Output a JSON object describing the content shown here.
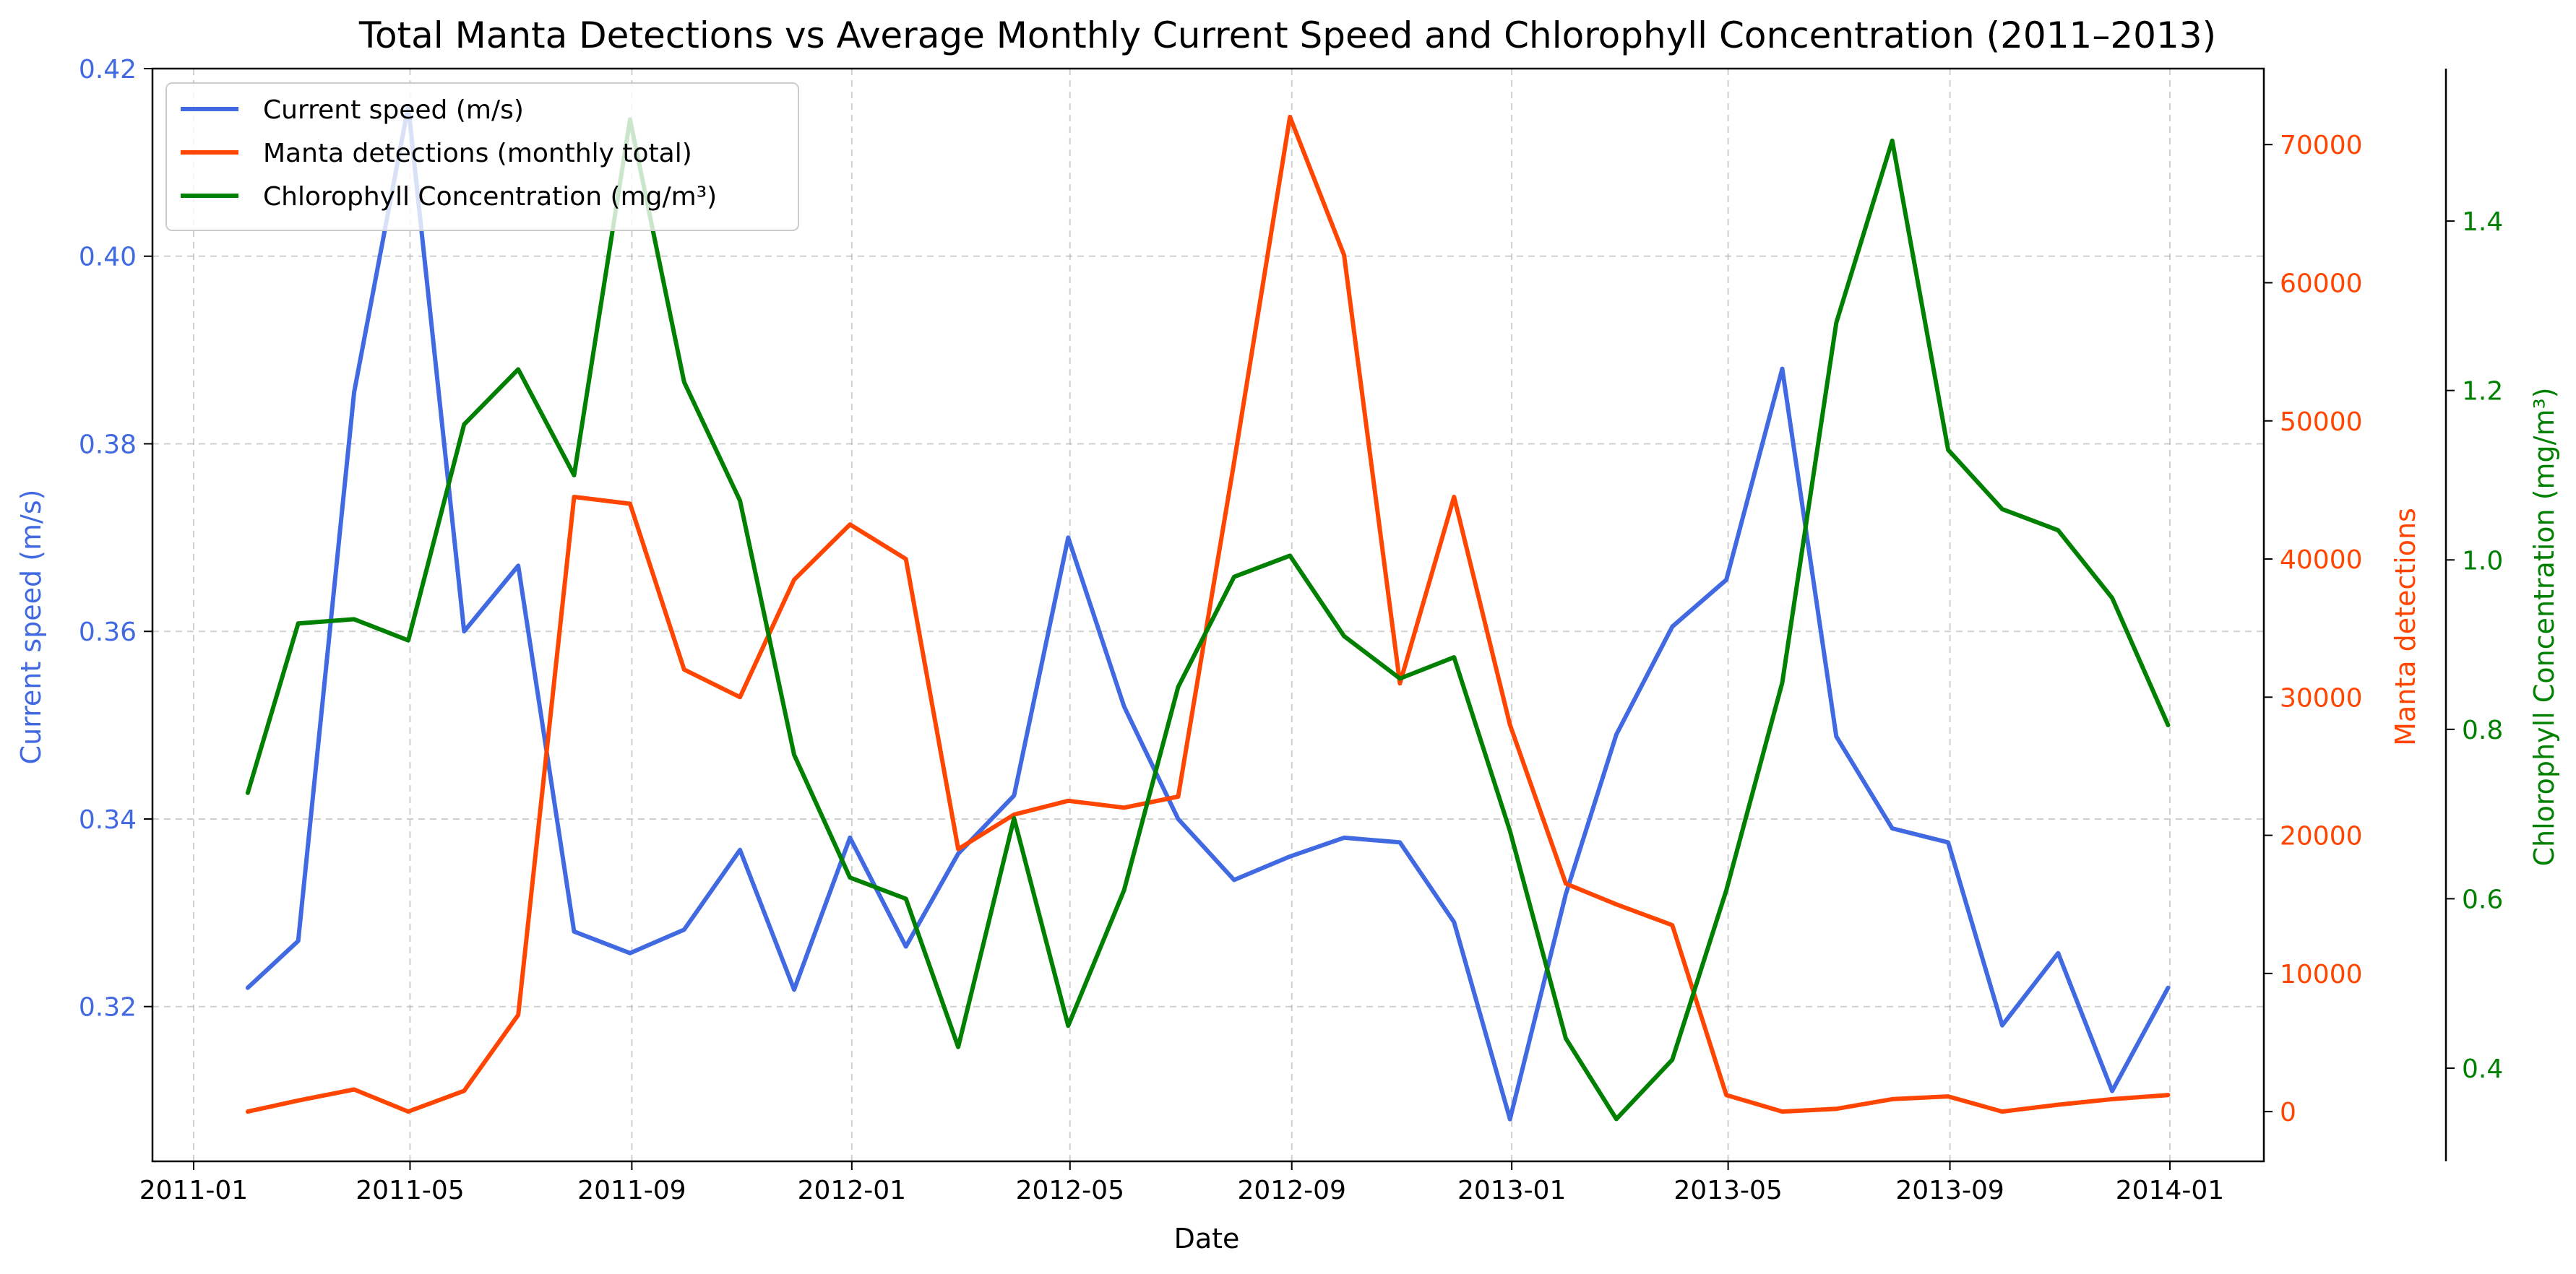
{
  "chart_data": {
    "type": "line",
    "title": "Total Manta Detections vs Average Monthly Current Speed and Chlorophyll Concentration (2011–2013)",
    "xlabel": "Date",
    "x_ticks": [
      "2011-01",
      "2011-05",
      "2011-09",
      "2012-01",
      "2012-05",
      "2012-09",
      "2013-01",
      "2013-05",
      "2013-09",
      "2014-01"
    ],
    "x": [
      "2011-01-31",
      "2011-02-28",
      "2011-03-31",
      "2011-04-30",
      "2011-05-31",
      "2011-06-30",
      "2011-07-31",
      "2011-08-31",
      "2011-09-30",
      "2011-10-31",
      "2011-11-30",
      "2011-12-31",
      "2012-01-31",
      "2012-02-29",
      "2012-03-31",
      "2012-04-30",
      "2012-05-31",
      "2012-06-30",
      "2012-07-31",
      "2012-08-31",
      "2012-09-30",
      "2012-10-31",
      "2012-11-30",
      "2012-12-31",
      "2013-01-31",
      "2013-02-28",
      "2013-03-31",
      "2013-04-30",
      "2013-05-31",
      "2013-06-30",
      "2013-07-31",
      "2013-08-31",
      "2013-09-30",
      "2013-10-31",
      "2013-11-30",
      "2013-12-31"
    ],
    "axes": {
      "left": {
        "label": "Current speed (m/s)",
        "color": "#4169e1",
        "ylim": [
          0.3035,
          0.42
        ],
        "ticks": [
          0.32,
          0.34,
          0.36,
          0.38,
          0.4,
          0.42
        ],
        "tick_labels": [
          "0.32",
          "0.34",
          "0.36",
          "0.38",
          "0.40",
          "0.42"
        ]
      },
      "right": {
        "label": "Manta detections",
        "color": "#ff4500",
        "ylim": [
          -3600,
          75500
        ],
        "ticks": [
          0,
          10000,
          20000,
          30000,
          40000,
          50000,
          60000,
          70000
        ],
        "tick_labels": [
          "0",
          "10000",
          "20000",
          "30000",
          "40000",
          "50000",
          "60000",
          "70000"
        ]
      },
      "right2": {
        "label": "Chlorophyll Concentration (mg/m³)",
        "color": "#008000",
        "ylim": [
          0.29,
          1.58
        ],
        "ticks": [
          0.4,
          0.6,
          0.8,
          1.0,
          1.2,
          1.4
        ],
        "tick_labels": [
          "0.4",
          "0.6",
          "0.8",
          "1.0",
          "1.2",
          "1.4"
        ]
      }
    },
    "grid": true,
    "legend_position": "top-left",
    "series": [
      {
        "name": "Current speed (m/s)",
        "axis": "left",
        "color": "#4169e1",
        "values": [
          0.322,
          0.327,
          0.3855,
          0.416,
          0.36,
          0.367,
          0.328,
          0.3257,
          0.3282,
          0.3367,
          0.3218,
          0.338,
          0.3264,
          0.3363,
          0.3425,
          0.37,
          0.352,
          0.34,
          0.3335,
          0.336,
          0.338,
          0.3375,
          0.329,
          0.308,
          0.332,
          0.349,
          0.3605,
          0.3655,
          0.388,
          0.3488,
          0.339,
          0.3375,
          0.318,
          0.3257,
          0.311,
          0.322
        ]
      },
      {
        "name": "Manta detections (monthly total)",
        "axis": "right",
        "color": "#ff4500",
        "values": [
          0,
          800,
          1600,
          0,
          1500,
          7000,
          44500,
          44000,
          32000,
          30000,
          38500,
          42500,
          40000,
          19000,
          21500,
          22500,
          22000,
          22800,
          47000,
          72000,
          62000,
          31000,
          44500,
          28000,
          16500,
          15000,
          13500,
          1200,
          0,
          200,
          900,
          1100,
          0,
          500,
          900,
          1200
        ]
      },
      {
        "name": "Chlorophyll Concentration (mg/m³)",
        "axis": "right2",
        "color": "#008000",
        "values": [
          0.725,
          0.925,
          0.93,
          0.905,
          1.16,
          1.225,
          1.1,
          1.52,
          1.21,
          1.07,
          0.77,
          0.625,
          0.6,
          0.425,
          0.695,
          0.45,
          0.61,
          0.85,
          0.98,
          1.005,
          0.91,
          0.86,
          0.885,
          0.68,
          0.435,
          0.34,
          0.41,
          0.61,
          0.855,
          1.28,
          1.495,
          1.13,
          1.06,
          1.035,
          0.955,
          0.805
        ]
      }
    ]
  }
}
